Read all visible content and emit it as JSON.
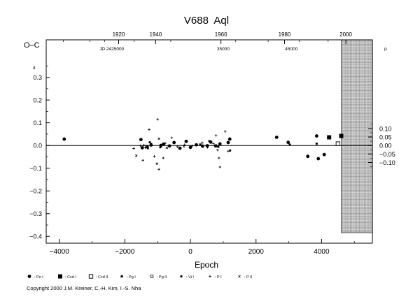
{
  "chart_data": {
    "type": "scatter",
    "title": "V688  Aql",
    "xlabel": "Epoch",
    "ylabel": "O–C",
    "ylabel_unit": "d",
    "right_unit": "P",
    "xlim": [
      -4400,
      5550
    ],
    "ylim": [
      -0.43,
      0.465
    ],
    "x_ticks": [
      -4000,
      -2000,
      0,
      2000,
      4000
    ],
    "x_tick_labels": [
      "−4000",
      "−2000",
      "0",
      "2000",
      "4000"
    ],
    "y_ticks": [
      0.3,
      0.2,
      0.1,
      0.0,
      -0.1,
      -0.2,
      -0.3,
      -0.4
    ],
    "y_tick_labels": [
      "0.3",
      "0.2",
      "0.1",
      "0.0",
      "−0.1",
      "−0.2",
      "−0.3",
      "−0.4"
    ],
    "right_ticks": [
      0.1,
      0.05,
      0.0,
      -0.05,
      -0.1
    ],
    "right_tick_labels": [
      "0.10",
      "0.05",
      "0.00",
      "−0.05",
      "−0.10"
    ],
    "right_scale": 0.7465,
    "top_year_ticks": [
      {
        "x": -2190,
        "label": "1920"
      },
      {
        "x": -1060,
        "label": "1940"
      },
      {
        "x": 930,
        "label": "1960"
      },
      {
        "x": 2870,
        "label": "1980"
      },
      {
        "x": 4740,
        "label": "2000"
      }
    ],
    "top_minor_x": [
      -3880,
      -3070,
      -2620,
      -1720,
      -600,
      1380,
      2370,
      3320,
      4200
    ],
    "jd_labels": [
      {
        "x": -2400,
        "label": "JD 2425000"
      },
      {
        "x": 1000,
        "label": "35000"
      },
      {
        "x": 3080,
        "label": "45000"
      }
    ],
    "shaded_region": [
      4600,
      5550
    ],
    "zero_line": 0.0,
    "grid": false,
    "series": [
      {
        "name": "Pe I",
        "marker": "filled-circle",
        "points": [
          [
            -3850,
            0.028
          ],
          [
            -1510,
            0.026
          ],
          [
            -1470,
            -0.01
          ],
          [
            -1320,
            -0.005
          ],
          [
            -1200,
            0.002
          ],
          [
            -900,
            0.0
          ],
          [
            -820,
            0.006
          ],
          [
            -640,
            -0.002
          ],
          [
            -500,
            0.013
          ],
          [
            -320,
            -0.012
          ],
          [
            -130,
            0.018
          ],
          [
            0,
            -0.008
          ],
          [
            180,
            0.003
          ],
          [
            370,
            -0.003
          ],
          [
            510,
            -0.001
          ],
          [
            620,
            0.015
          ],
          [
            770,
            -0.002
          ],
          [
            900,
            0.007
          ],
          [
            1150,
            0.013
          ],
          [
            1200,
            0.028
          ],
          [
            2630,
            0.036
          ],
          [
            2980,
            0.014
          ],
          [
            3580,
            -0.048
          ],
          [
            3850,
            0.042
          ],
          [
            3900,
            -0.058
          ],
          [
            4080,
            -0.04
          ]
        ]
      },
      {
        "name": "Ccd I",
        "marker": "filled-square",
        "points": [
          [
            4230,
            0.036
          ],
          [
            4600,
            0.042
          ]
        ]
      },
      {
        "name": "Ccd II",
        "marker": "open-square",
        "points": [
          [
            4500,
            0.008
          ]
        ]
      },
      {
        "name": "Pg I",
        "marker": "small-filled-square",
        "points": [
          [
            -1200,
            0.006
          ],
          [
            -900,
            0.002
          ],
          [
            300,
            0.004
          ],
          [
            520,
            0.0
          ]
        ]
      },
      {
        "name": "Pg II",
        "marker": "small-open-square",
        "points": []
      },
      {
        "name": "Vi I",
        "marker": "small-filled-circle",
        "points": [
          [
            -1300,
            -0.012
          ],
          [
            -1240,
            0.014
          ],
          [
            -920,
            -0.008
          ],
          [
            850,
            -0.006
          ],
          [
            1210,
            -0.022
          ],
          [
            3030,
            0.004
          ],
          [
            3580,
            -0.045
          ],
          [
            3850,
            0.008
          ]
        ]
      },
      {
        "name": "P I",
        "marker": "plus",
        "points": [
          [
            -1730,
            -0.013
          ],
          [
            -1530,
            -0.001
          ],
          [
            -1450,
            -0.065
          ],
          [
            -1420,
            0.002
          ],
          [
            -1380,
            -0.01
          ],
          [
            -1260,
            0.07
          ],
          [
            -1100,
            -0.048
          ],
          [
            -960,
            -0.105
          ],
          [
            -830,
            -0.055
          ],
          [
            -770,
            0.01
          ],
          [
            -1000,
            0.115
          ],
          [
            -570,
            0.034
          ],
          [
            -400,
            -0.005
          ],
          [
            -180,
            0.003
          ],
          [
            50,
            -0.002
          ],
          [
            360,
            0.012
          ],
          [
            520,
            -0.008
          ],
          [
            700,
            0.008
          ],
          [
            780,
            0.044
          ],
          [
            830,
            -0.02
          ],
          [
            870,
            -0.055
          ],
          [
            900,
            -0.095
          ],
          [
            1060,
            0.062
          ],
          [
            1150,
            -0.025
          ]
        ]
      },
      {
        "name": "P II",
        "marker": "cross",
        "points": [
          [
            -1650,
            -0.045
          ],
          [
            -1020,
            -0.08
          ],
          [
            -960,
            0.03
          ],
          [
            -720,
            -0.01
          ],
          [
            -200,
            -0.004
          ],
          [
            570,
            0.02
          ],
          [
            770,
            0.001
          ]
        ]
      }
    ],
    "legend": [
      {
        "marker": "filled-circle",
        "label": ": Pe I"
      },
      {
        "marker": "filled-square",
        "label": ": Ccd I"
      },
      {
        "marker": "open-square",
        "label": ": Ccd II"
      },
      {
        "marker": "small-filled-square",
        "label": ": Pg I"
      },
      {
        "marker": "small-open-square",
        "label": ": Pg II"
      },
      {
        "marker": "small-filled-circle",
        "label": ": Vi I"
      },
      {
        "marker": "plus",
        "label": ": P I"
      },
      {
        "marker": "cross",
        "label": ": P II"
      }
    ],
    "legend_placement": "bottom"
  },
  "copyright": "Copyright 2000 J.M. Kreiner, C.-H. Kim, I.-S. Nha"
}
